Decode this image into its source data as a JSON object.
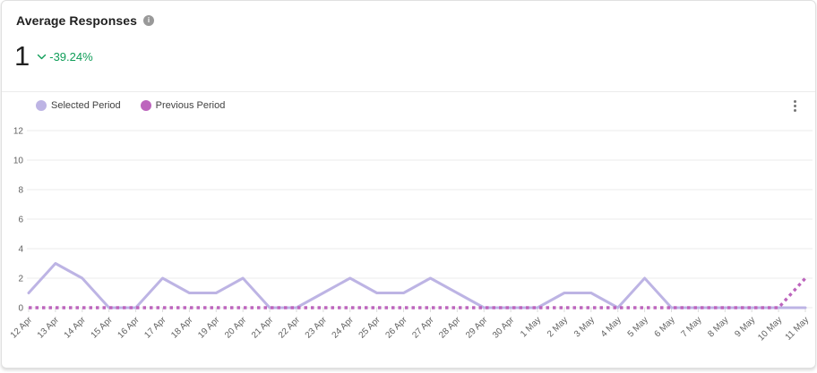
{
  "header": {
    "title": "Average Responses"
  },
  "metric": {
    "value": "1",
    "delta": "-39.24%",
    "trend": "down",
    "delta_color": "#0f9d58"
  },
  "legend": {
    "items": [
      {
        "label": "Selected Period",
        "color": "#bdb4e4"
      },
      {
        "label": "Previous Period",
        "color": "#bd65bd"
      }
    ]
  },
  "chart_data": {
    "type": "line",
    "x": [
      "12 Apr",
      "13 Apr",
      "14 Apr",
      "15 Apr",
      "16 Apr",
      "17 Apr",
      "18 Apr",
      "19 Apr",
      "20 Apr",
      "21 Apr",
      "22 Apr",
      "23 Apr",
      "24 Apr",
      "25 Apr",
      "26 Apr",
      "27 Apr",
      "28 Apr",
      "29 Apr",
      "30 Apr",
      "1 May",
      "2 May",
      "3 May",
      "4 May",
      "5 May",
      "6 May",
      "7 May",
      "8 May",
      "9 May",
      "10 May",
      "11 May"
    ],
    "series": [
      {
        "name": "Selected Period",
        "color": "#bdb4e4",
        "style": "solid",
        "values": [
          1,
          3,
          2,
          0,
          0,
          2,
          1,
          1,
          2,
          0,
          0,
          1,
          2,
          1,
          1,
          2,
          1,
          0,
          0,
          0,
          1,
          1,
          0,
          2,
          0,
          0,
          0,
          0,
          0,
          0
        ]
      },
      {
        "name": "Previous Period",
        "color": "#bd65bd",
        "style": "dashed",
        "values": [
          0,
          0,
          0,
          0,
          0,
          0,
          0,
          0,
          0,
          0,
          0,
          0,
          0,
          0,
          0,
          0,
          0,
          0,
          0,
          0,
          0,
          0,
          0,
          0,
          0,
          0,
          0,
          0,
          0,
          2
        ]
      }
    ],
    "ylim": [
      0,
      12
    ],
    "yticks": [
      0,
      2,
      4,
      6,
      8,
      10,
      12
    ],
    "grid": true,
    "legend_position": "top-left"
  }
}
